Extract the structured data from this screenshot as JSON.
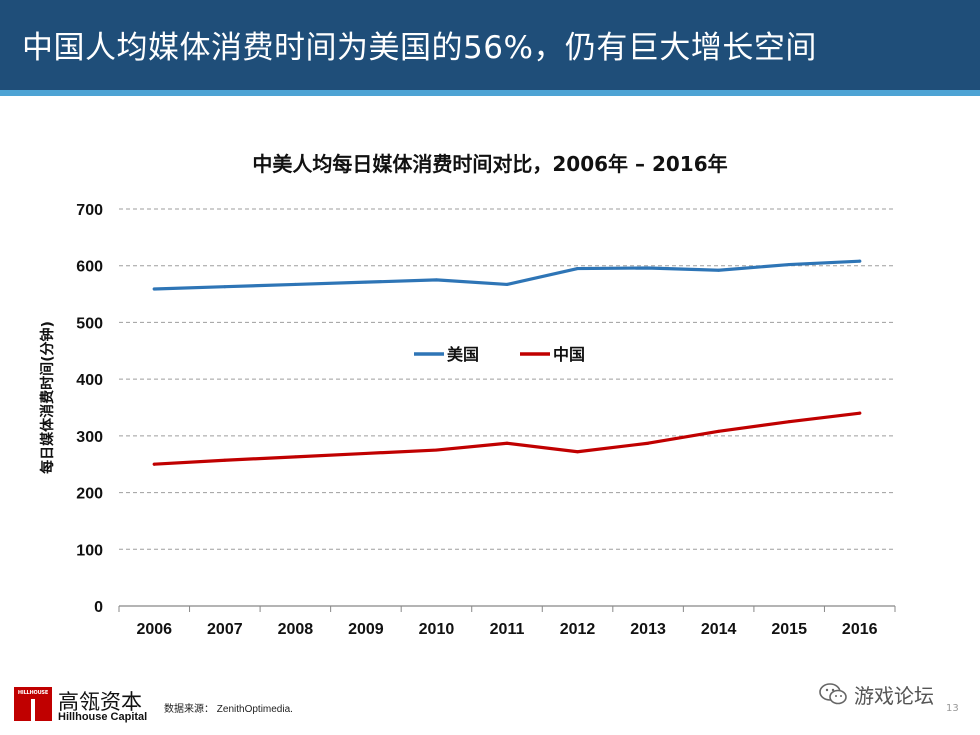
{
  "header": {
    "title": "中国人均媒体消费时间为美国的56%，仍有巨大增长空间"
  },
  "chart_data": {
    "type": "line",
    "title": "中美人均每日媒体消费时间对比，2006年 – 2016年",
    "xlabel": "",
    "ylabel": "每日媒体消费时间(分钟)",
    "categories": [
      "2006",
      "2007",
      "2008",
      "2009",
      "2010",
      "2011",
      "2012",
      "2013",
      "2014",
      "2015",
      "2016"
    ],
    "yticks": [
      "0",
      "100",
      "200",
      "300",
      "400",
      "500",
      "600",
      "700"
    ],
    "ylim": [
      0,
      700
    ],
    "grid": "horizontal dashed",
    "legend": "center-left, inside plot",
    "series": [
      {
        "name": "美国",
        "color": "#2e75b6",
        "values": [
          559,
          563,
          567,
          571,
          575,
          567,
          595,
          596,
          592,
          602,
          608
        ]
      },
      {
        "name": "中国",
        "color": "#c00000",
        "values": [
          250,
          257,
          263,
          269,
          275,
          287,
          272,
          287,
          308,
          325,
          340
        ]
      }
    ]
  },
  "footer": {
    "logo_text": "HILLHOUSE",
    "brand_cn": "高瓴资本",
    "brand_en": "Hillhouse Capital",
    "source": "数据来源： ZenithOptimedia.",
    "watermark_text": "游戏论坛",
    "page_number": "13"
  }
}
